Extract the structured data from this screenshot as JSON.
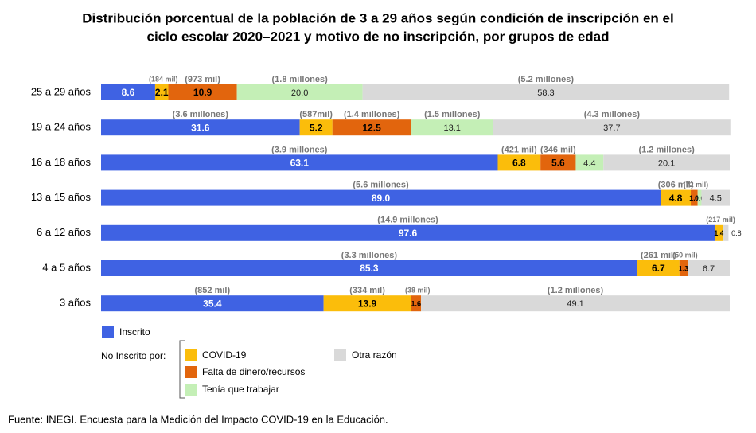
{
  "chart_data": {
    "type": "stacked-bar-horizontal",
    "title": [
      "Distribución porcentual de la población de 3 a 29 años según condición de inscripción en el",
      "ciclo escolar 2020–2021 y motivo de no inscripción,  por grupos de edad"
    ],
    "categories": [
      "25 a 29 años",
      "19 a 24 años",
      "16 a 18 años",
      "13 a 15 años",
      "6 a 12 años",
      "4 a 5 años",
      "3 años"
    ],
    "xlim": [
      0,
      100
    ],
    "legend_group_label": "No Inscrito por:",
    "series": [
      {
        "name": "Inscrito",
        "color": "#3f62e3",
        "values": [
          8.6,
          31.6,
          63.1,
          89.0,
          97.6,
          85.3,
          35.4
        ],
        "value_labels": [
          "8.6",
          "31.6",
          "63.1",
          "89.0",
          "97.6",
          "85.3",
          "35.4"
        ],
        "counts": [
          null,
          "(3.6 millones)",
          "(3.9 millones)",
          "(5.6 millones)",
          "(14.9 millones)",
          "(3.3 millones)",
          "(852 mil)"
        ]
      },
      {
        "name": "COVID-19",
        "color": "#fbbd0b",
        "values": [
          2.1,
          5.2,
          6.8,
          4.8,
          1.4,
          6.7,
          13.9
        ],
        "value_labels": [
          "2.1",
          "5.2",
          "6.8",
          "4.8",
          "1.4",
          "6.7",
          "13.9"
        ],
        "counts": [
          "(184 mil)",
          "(587mil)",
          "(421 mil)",
          "(306 mil)",
          "(217 mil)",
          "(261 mil)",
          "(334 mil)"
        ]
      },
      {
        "name": "Falta de dinero/recursos",
        "color": "#e2650d",
        "values": [
          10.9,
          12.5,
          5.6,
          1.1,
          null,
          1.3,
          1.6
        ],
        "value_labels": [
          "10.9",
          "12.5",
          "5.6",
          "1.1",
          null,
          "1.3",
          "1.6"
        ],
        "counts": [
          "(973 mil)",
          "(1.4 millones)",
          "(346 mil)",
          "(72 mil)",
          null,
          "(50 mil)",
          "(38 mil)"
        ]
      },
      {
        "name": "Tenía que trabajar",
        "color": "#c4efb6",
        "values": [
          20.0,
          13.1,
          4.4,
          0.6,
          null,
          null,
          null
        ],
        "value_labels": [
          "20.0",
          "13.1",
          "4.4",
          "0.6",
          null,
          null,
          null
        ],
        "counts": [
          "(1.8 millones)",
          "(1.5 millones)",
          null,
          null,
          null,
          null,
          null
        ]
      },
      {
        "name": "Otra razón",
        "color": "#d9d9d9",
        "values": [
          58.3,
          37.7,
          20.1,
          4.5,
          0.8,
          6.7,
          49.1
        ],
        "value_labels": [
          "58.3",
          "37.7",
          "20.1",
          "4.5",
          "0.8",
          "6.7",
          "49.1"
        ],
        "counts": [
          "(5.2 millones)",
          "(4.3 millones)",
          "(1.2 millones)",
          null,
          null,
          null,
          "(1.2 millones)"
        ]
      }
    ],
    "source": "Fuente: INEGI. Encuesta para la Medición del Impacto COVID-19 en la Educación."
  }
}
